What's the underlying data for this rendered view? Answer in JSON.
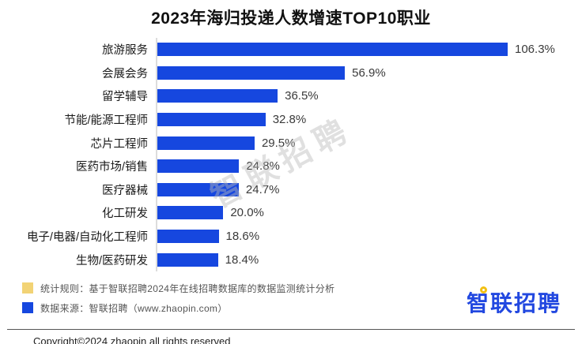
{
  "title": "2023年海归投递人数增速TOP10职业",
  "chart_data": {
    "type": "bar",
    "orientation": "horizontal",
    "title": "2023年海归投递人数增速TOP10职业",
    "categories": [
      "旅游服务",
      "会展会务",
      "留学辅导",
      "节能/能源工程师",
      "芯片工程师",
      "医药市场/销售",
      "医疗器械",
      "化工研发",
      "电子/电器/自动化工程师",
      "生物/医药研发"
    ],
    "values": [
      106.3,
      56.9,
      36.5,
      32.8,
      29.5,
      24.8,
      24.7,
      20.0,
      18.6,
      18.4
    ],
    "value_labels": [
      "106.3%",
      "56.9%",
      "36.5%",
      "32.8%",
      "29.5%",
      "24.8%",
      "24.7%",
      "20.0%",
      "18.6%",
      "18.4%"
    ],
    "unit": "%",
    "xlabel": "",
    "ylabel": "",
    "xlim": [
      0,
      106.3
    ],
    "grid": false,
    "legend_position": "none"
  },
  "watermark": "智联招聘",
  "footnotes": [
    {
      "marker_color": "#f2d375",
      "text": "统计规则：基于智联招聘2024年在线招聘数据库的数据监测统计分析"
    },
    {
      "marker_color": "#1647df",
      "text": "数据来源：智联招聘（www.zhaopin.com）"
    }
  ],
  "logo": {
    "text": "智联招聘"
  },
  "copyright": "Copyright©2024 zhaopin all rights reserved",
  "colors": {
    "bar_blue": "#1647df",
    "logo_blue": "#2248e0",
    "legend_yellow": "#f2d375",
    "axis_line": "#dcdcdc"
  }
}
